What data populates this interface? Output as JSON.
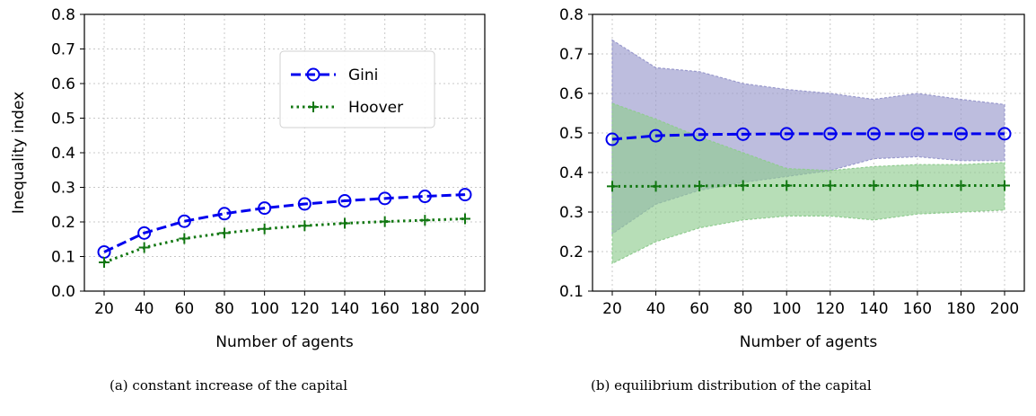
{
  "chart_data": [
    {
      "type": "line",
      "caption": "(a) constant increase of the capital",
      "xlabel": "Number of agents",
      "ylabel": "Inequality index",
      "x": [
        20,
        40,
        60,
        80,
        100,
        120,
        140,
        160,
        180,
        200
      ],
      "xticks": [
        "20",
        "40",
        "60",
        "80",
        "100",
        "120",
        "140",
        "160",
        "180",
        "200"
      ],
      "ylim": [
        0.0,
        0.8
      ],
      "yticks": [
        "0.0",
        "0.1",
        "0.2",
        "0.3",
        "0.4",
        "0.5",
        "0.6",
        "0.7",
        "0.8"
      ],
      "grid": true,
      "legend": "top-right",
      "series": [
        {
          "name": "Gini",
          "color": "#0000ee",
          "marker": "circle",
          "linestyle": "dashed",
          "values": [
            0.113,
            0.168,
            0.202,
            0.224,
            0.24,
            0.252,
            0.261,
            0.268,
            0.274,
            0.279
          ]
        },
        {
          "name": "Hoover",
          "color": "#117711",
          "marker": "plus",
          "linestyle": "dotted",
          "values": [
            0.083,
            0.126,
            0.152,
            0.168,
            0.18,
            0.189,
            0.196,
            0.201,
            0.205,
            0.209
          ]
        }
      ]
    },
    {
      "type": "line",
      "caption": "(b) equilibrium distribution of the capital",
      "xlabel": "Number of agents",
      "ylabel": "",
      "x": [
        20,
        40,
        60,
        80,
        100,
        120,
        140,
        160,
        180,
        200
      ],
      "xticks": [
        "20",
        "40",
        "60",
        "80",
        "100",
        "120",
        "140",
        "160",
        "180",
        "200"
      ],
      "ylim": [
        0.1,
        0.8
      ],
      "yticks": [
        "0.1",
        "0.2",
        "0.3",
        "0.4",
        "0.5",
        "0.6",
        "0.7",
        "0.8"
      ],
      "grid": true,
      "series": [
        {
          "color": "#0000ee",
          "marker": "circle",
          "linestyle": "dashed",
          "band_color": "#9999cc",
          "values": [
            0.484,
            0.493,
            0.496,
            0.497,
            0.498,
            0.498,
            0.498,
            0.498,
            0.498,
            0.498
          ],
          "band_upper": [
            0.735,
            0.665,
            0.655,
            0.625,
            0.61,
            0.6,
            0.585,
            0.6,
            0.585,
            0.572
          ],
          "band_lower": [
            0.245,
            0.32,
            0.355,
            0.375,
            0.39,
            0.405,
            0.435,
            0.44,
            0.43,
            0.43
          ]
        },
        {
          "color": "#117711",
          "marker": "plus",
          "linestyle": "dotted",
          "band_color": "#90cc90",
          "values": [
            0.365,
            0.365,
            0.366,
            0.367,
            0.367,
            0.367,
            0.367,
            0.367,
            0.367,
            0.367
          ],
          "band_upper": [
            0.575,
            0.535,
            0.49,
            0.45,
            0.41,
            0.405,
            0.415,
            0.42,
            0.42,
            0.425
          ],
          "band_lower": [
            0.17,
            0.225,
            0.26,
            0.28,
            0.29,
            0.29,
            0.28,
            0.295,
            0.3,
            0.305
          ]
        }
      ]
    }
  ]
}
